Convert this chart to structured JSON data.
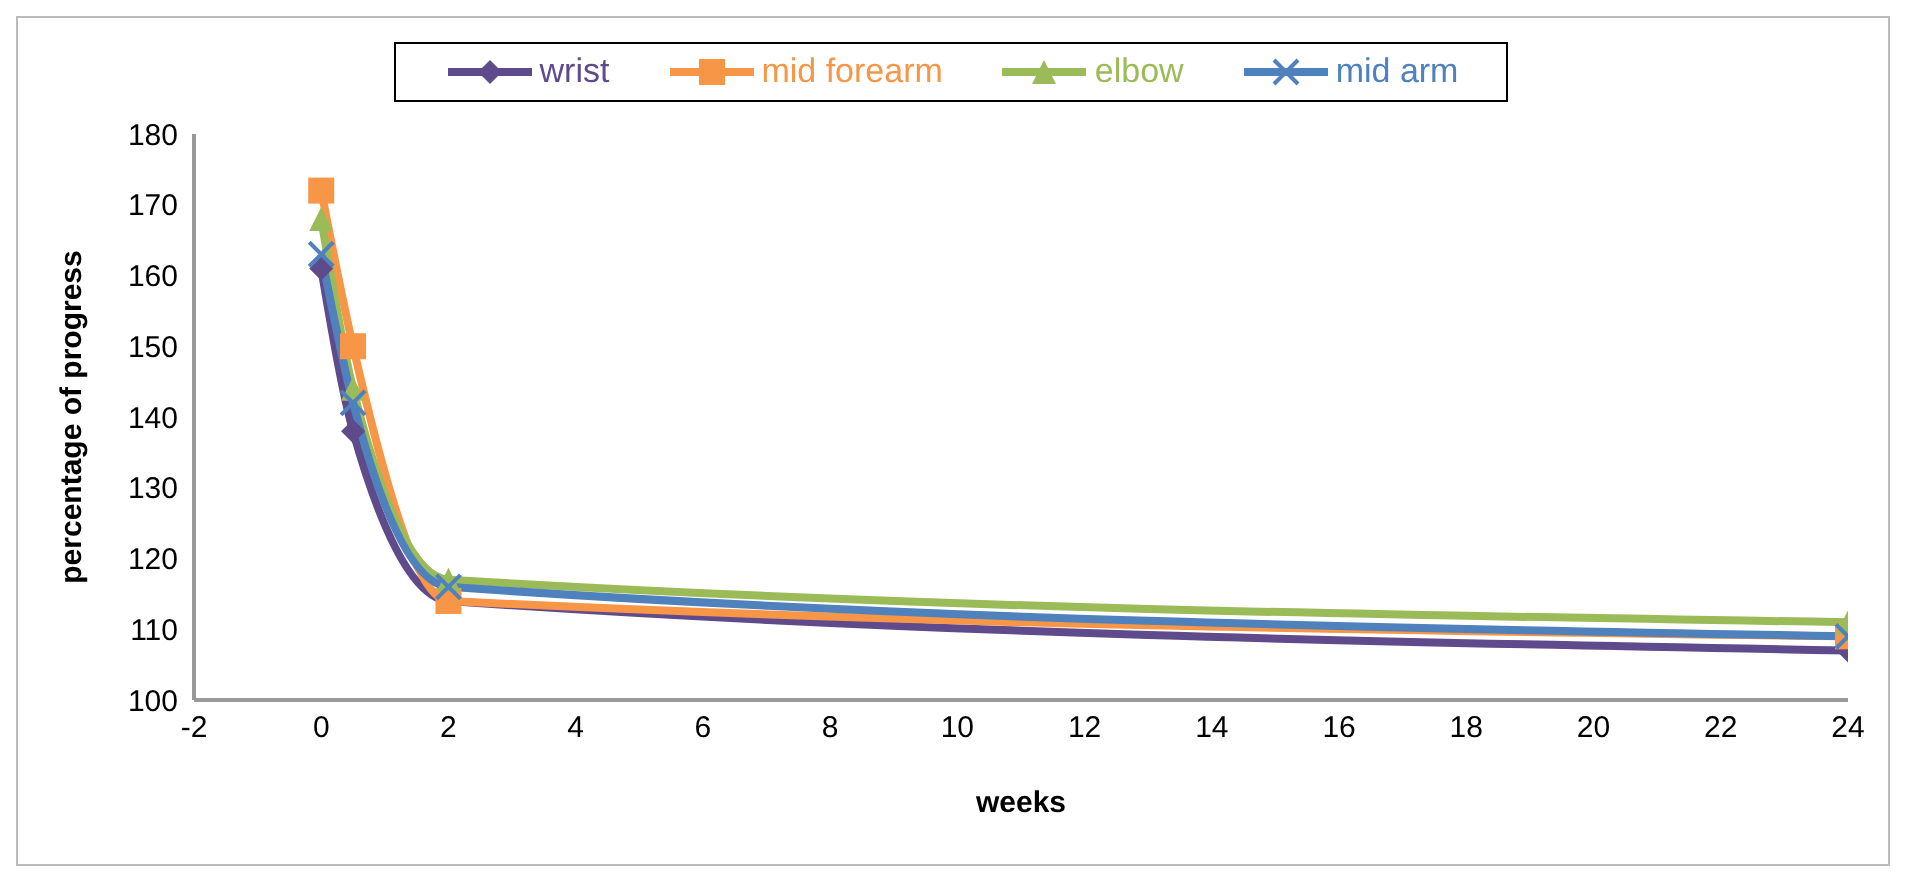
{
  "chart_data": {
    "type": "line",
    "xlabel": "weeks",
    "ylabel": "percentage of progress",
    "x": [
      0,
      0.5,
      2,
      24
    ],
    "series": [
      {
        "name": "wrist",
        "color": "#5f4b8b",
        "marker": "diamond",
        "values": [
          161,
          138,
          114,
          107
        ]
      },
      {
        "name": "mid forearm",
        "color": "#f79646",
        "marker": "square",
        "values": [
          172,
          150,
          114,
          109
        ]
      },
      {
        "name": "elbow",
        "color": "#9bbb59",
        "marker": "triangle",
        "values": [
          168,
          144,
          117,
          111
        ]
      },
      {
        "name": "mid arm",
        "color": "#4f81bd",
        "marker": "cross",
        "values": [
          163,
          142,
          116,
          109
        ]
      }
    ],
    "xlim": [
      -2,
      24
    ],
    "xticks": [
      -2,
      0,
      2,
      4,
      6,
      8,
      10,
      12,
      14,
      16,
      18,
      20,
      22,
      24
    ],
    "ylim": [
      100,
      180
    ],
    "yticks": [
      100,
      110,
      120,
      130,
      140,
      150,
      160,
      170,
      180
    ],
    "grid": false,
    "legend": "top"
  }
}
